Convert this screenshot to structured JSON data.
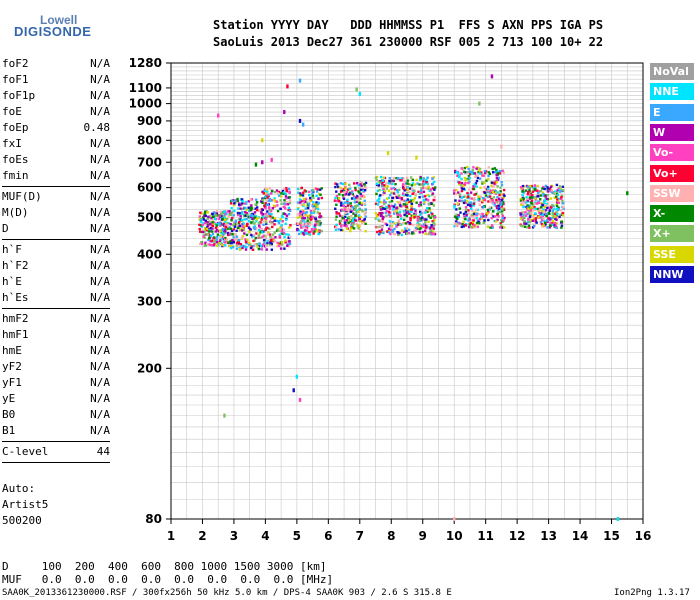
{
  "logo": {
    "line1": "Lowell",
    "line2": "DIGISONDE"
  },
  "header": {
    "line1": "Station YYYY DAY   DDD HHMMSS P1  FFS S AXN PPS IGA PS",
    "line2": "SaoLuis 2013 Dec27 361 230000 RSF 005 2 713 100 10+ 22"
  },
  "params": [
    {
      "k": "foF2",
      "v": "N/A"
    },
    {
      "k": "foF1",
      "v": "N/A"
    },
    {
      "k": "foF1p",
      "v": "N/A"
    },
    {
      "k": "foE",
      "v": "N/A"
    },
    {
      "k": "foEp",
      "v": "0.48"
    },
    {
      "k": "fxI",
      "v": "N/A"
    },
    {
      "k": "foEs",
      "v": "N/A"
    },
    {
      "k": "fmin",
      "v": "N/A"
    },
    {
      "sep": true
    },
    {
      "k": "MUF(D)",
      "v": "N/A"
    },
    {
      "k": "M(D)",
      "v": "N/A"
    },
    {
      "k": "D",
      "v": "N/A"
    },
    {
      "sep": true
    },
    {
      "k": "h`F",
      "v": "N/A"
    },
    {
      "k": "h`F2",
      "v": "N/A"
    },
    {
      "k": "h`E",
      "v": "N/A"
    },
    {
      "k": "h`Es",
      "v": "N/A"
    },
    {
      "sep": true
    },
    {
      "k": "hmF2",
      "v": "N/A"
    },
    {
      "k": "hmF1",
      "v": "N/A"
    },
    {
      "k": "hmE",
      "v": "N/A"
    },
    {
      "k": "yF2",
      "v": "N/A"
    },
    {
      "k": "yF1",
      "v": "N/A"
    },
    {
      "k": "yE",
      "v": "N/A"
    },
    {
      "k": "B0",
      "v": "N/A"
    },
    {
      "k": "B1",
      "v": "N/A"
    },
    {
      "sep": true
    },
    {
      "k": "C-level",
      "v": "44"
    },
    {
      "sep": true
    }
  ],
  "auto": {
    "l1": "Auto:",
    "l2": "Artist5",
    "l3": "500200"
  },
  "legend": [
    {
      "label": "NoVal",
      "color": "#a0a0a0"
    },
    {
      "label": "NNE",
      "color": "#00e5ff"
    },
    {
      "label": "E",
      "color": "#3aa8ff"
    },
    {
      "label": "W",
      "color": "#b000b0"
    },
    {
      "label": "Vo-",
      "color": "#ff40c0"
    },
    {
      "label": "Vo+",
      "color": "#ff0033"
    },
    {
      "label": "SSW",
      "color": "#ffb0b0"
    },
    {
      "label": "X-",
      "color": "#008800"
    },
    {
      "label": "X+",
      "color": "#7fc060"
    },
    {
      "label": "SSE",
      "color": "#d8d800"
    },
    {
      "label": "NNW",
      "color": "#1010c0"
    }
  ],
  "bottom": {
    "d_row": "D     100  200  400  600  800 1000 1500 3000 [km]",
    "muf_row": "MUF   0.0  0.0  0.0  0.0  0.0  0.0  0.0  0.0 [MHz]",
    "footer_left": "SAA0K_2013361230000.RSF / 300fx256h 50 kHz 5.0 km / DPS-4 SAA0K 903 / 2.6 S 315.8 E",
    "footer_right": "Ion2Png 1.3.17"
  },
  "chart_data": {
    "type": "scatter",
    "title": "",
    "xlabel": "",
    "ylabel": "",
    "xlim": [
      1,
      16
    ],
    "ylim": [
      80,
      1280
    ],
    "yscale": "log",
    "x_ticks": [
      1,
      2,
      3,
      4,
      5,
      6,
      7,
      8,
      9,
      10,
      11,
      12,
      13,
      14,
      15,
      16
    ],
    "y_ticks": [
      80,
      200,
      300,
      400,
      500,
      600,
      700,
      800,
      900,
      1000,
      1100,
      1280
    ],
    "grid": true,
    "legend_position": "right",
    "clusters": [
      {
        "x0": 1.9,
        "x1": 2.9,
        "y0": 420,
        "y1": 520
      },
      {
        "x0": 2.9,
        "x1": 3.9,
        "y0": 410,
        "y1": 560
      },
      {
        "x0": 3.9,
        "x1": 4.8,
        "y0": 410,
        "y1": 600
      },
      {
        "x0": 5.0,
        "x1": 5.8,
        "y0": 450,
        "y1": 600
      },
      {
        "x0": 6.2,
        "x1": 7.2,
        "y0": 460,
        "y1": 620
      },
      {
        "x0": 7.5,
        "x1": 8.5,
        "y0": 450,
        "y1": 640
      },
      {
        "x0": 8.5,
        "x1": 9.4,
        "y0": 450,
        "y1": 640
      },
      {
        "x0": 10.0,
        "x1": 11.6,
        "y0": 470,
        "y1": 680
      },
      {
        "x0": 12.1,
        "x1": 13.5,
        "y0": 470,
        "y1": 610
      }
    ],
    "sparse_points": [
      {
        "x": 3.7,
        "y": 690
      },
      {
        "x": 3.9,
        "y": 700
      },
      {
        "x": 4.2,
        "y": 710
      },
      {
        "x": 2.5,
        "y": 930
      },
      {
        "x": 3.9,
        "y": 800
      },
      {
        "x": 4.7,
        "y": 1110
      },
      {
        "x": 5.1,
        "y": 1150
      },
      {
        "x": 5.1,
        "y": 900
      },
      {
        "x": 5.2,
        "y": 880
      },
      {
        "x": 7.0,
        "y": 1060
      },
      {
        "x": 6.9,
        "y": 1090
      },
      {
        "x": 11.2,
        "y": 1180
      },
      {
        "x": 10.8,
        "y": 1000
      },
      {
        "x": 5.0,
        "y": 190
      },
      {
        "x": 4.9,
        "y": 175
      },
      {
        "x": 5.1,
        "y": 165
      },
      {
        "x": 2.7,
        "y": 150
      },
      {
        "x": 10.0,
        "y": 80
      },
      {
        "x": 15.2,
        "y": 80
      },
      {
        "x": 11.5,
        "y": 770
      },
      {
        "x": 7.9,
        "y": 740
      },
      {
        "x": 8.8,
        "y": 720
      },
      {
        "x": 15.5,
        "y": 580
      },
      {
        "x": 4.6,
        "y": 950
      }
    ]
  }
}
